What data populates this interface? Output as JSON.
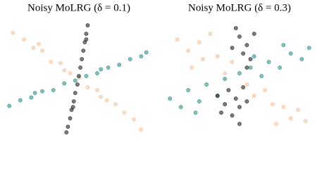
{
  "chart_data": [
    {
      "type": "scatter",
      "title": "Noisy MoLRG (δ = 0.1)",
      "xlim": [
        -1,
        1
      ],
      "ylim": [
        -1,
        1
      ],
      "series": [
        {
          "color": "#eebf98",
          "x": [
            -0.9,
            -0.75,
            -0.62,
            -0.5,
            -0.38,
            -0.25,
            -0.12,
            0.0,
            0.12,
            0.25,
            0.38,
            0.5,
            0.62,
            0.75,
            0.85,
            -0.55,
            0.3,
            -0.2
          ],
          "values": [
            0.82,
            0.7,
            0.55,
            0.5,
            0.3,
            0.28,
            0.1,
            0.02,
            -0.15,
            -0.2,
            -0.38,
            -0.45,
            -0.6,
            -0.72,
            -0.9,
            0.62,
            -0.32,
            0.15
          ]
        },
        {
          "color": "#1d8a80",
          "x": [
            -0.95,
            -0.8,
            -0.65,
            -0.5,
            -0.35,
            -0.2,
            -0.05,
            0.1,
            0.25,
            0.4,
            0.55,
            0.7,
            0.85,
            0.92,
            -0.6,
            0.3
          ],
          "values": [
            -0.48,
            -0.38,
            -0.33,
            -0.22,
            -0.2,
            -0.08,
            -0.03,
            0.05,
            0.1,
            0.2,
            0.25,
            0.35,
            0.4,
            0.47,
            -0.25,
            0.17
          ]
        },
        {
          "color": "#111111",
          "x": [
            0.12,
            0.1,
            0.08,
            0.06,
            0.04,
            0.02,
            0.0,
            -0.02,
            -0.05,
            -0.07,
            -0.1,
            -0.12,
            -0.15,
            -0.17,
            0.1,
            -0.08
          ],
          "values": [
            0.95,
            0.8,
            0.65,
            0.5,
            0.35,
            0.2,
            0.05,
            -0.1,
            -0.25,
            -0.4,
            -0.55,
            -0.7,
            -0.85,
            -0.95,
            0.7,
            -0.5
          ]
        }
      ]
    },
    {
      "type": "scatter",
      "title": "Noisy MoLRG (δ = 0.3)",
      "xlim": [
        -1,
        1
      ],
      "ylim": [
        -1,
        1
      ],
      "series": [
        {
          "color": "#eebf98",
          "x": [
            -0.85,
            -0.7,
            -0.55,
            -0.5,
            -0.3,
            -0.2,
            -0.1,
            0.1,
            0.2,
            0.35,
            0.45,
            0.6,
            0.7,
            0.8,
            -0.65,
            0.5,
            0.9,
            -0.4
          ],
          "values": [
            0.7,
            0.5,
            0.65,
            0.35,
            0.4,
            0.1,
            0.3,
            -0.1,
            -0.3,
            -0.2,
            -0.45,
            -0.5,
            -0.7,
            -0.55,
            0.2,
            -0.8,
            -0.75,
            0.8
          ]
        },
        {
          "color": "#1d8a80",
          "x": [
            -0.95,
            -0.8,
            -0.7,
            -0.55,
            -0.45,
            -0.3,
            -0.2,
            0.0,
            0.15,
            0.3,
            0.4,
            0.55,
            0.7,
            0.85,
            0.95,
            -0.6,
            0.2,
            0.6
          ],
          "values": [
            -0.35,
            -0.5,
            -0.2,
            -0.4,
            -0.1,
            -0.3,
            0.0,
            0.1,
            0.2,
            0.05,
            0.3,
            0.2,
            0.45,
            0.35,
            0.55,
            -0.6,
            0.4,
            0.6
          ]
        },
        {
          "color": "#111111",
          "x": [
            0.0,
            0.1,
            -0.1,
            0.05,
            0.2,
            -0.05,
            0.15,
            -0.15,
            -0.05,
            -0.2,
            0.0,
            -0.1,
            0.1,
            -0.3,
            0.05,
            -0.25,
            0.1,
            0.0
          ],
          "values": [
            0.75,
            0.6,
            0.55,
            0.45,
            0.8,
            0.9,
            0.35,
            -0.2,
            -0.35,
            -0.45,
            -0.5,
            -0.65,
            -0.4,
            -0.3,
            -0.15,
            -0.6,
            0.2,
            -0.8
          ]
        }
      ]
    }
  ]
}
